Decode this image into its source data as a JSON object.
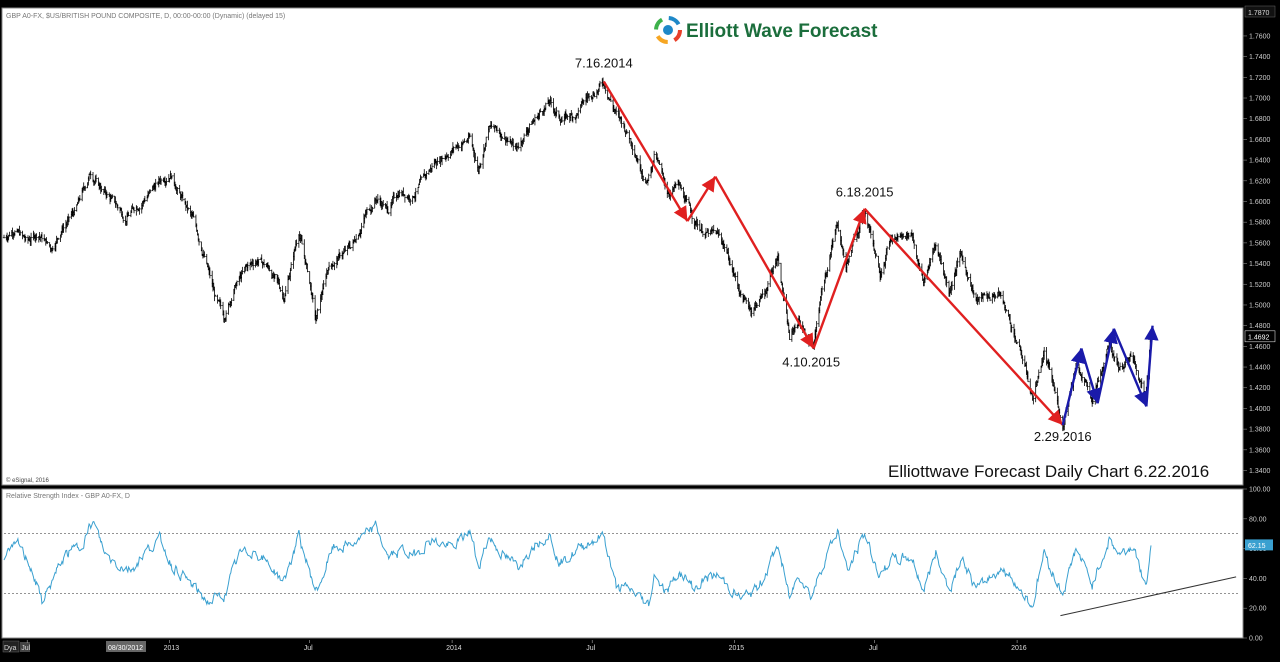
{
  "chart_header": "GBP A0-FX, $US/BRITISH POUND COMPOSITE, D, 00:00-00:00 (Dynamic) (delayed 15)",
  "brand": {
    "name": "Elliott Wave Forecast",
    "logo_colors": [
      "#e8402a",
      "#f6a623",
      "#3db14b",
      "#1e88c8"
    ]
  },
  "chart_title": "Elliottwave Forecast Daily Chart 6.22.2016",
  "copyright": "© eSignal, 2016",
  "rsi_header": "Relative Strength Index - GBP A0-FX, D",
  "colors": {
    "price_bar": "#000000",
    "impulse_arrows": "#e02020",
    "corrective_arrows": "#1a1aaa",
    "rsi_line": "#3aa0d0",
    "current_price_box": "#000000",
    "rsi_value_box": "#3aa0d0"
  },
  "price_axis": {
    "ticks": [
      "1.3400",
      "1.3600",
      "1.3800",
      "1.4000",
      "1.4200",
      "1.4400",
      "1.4600",
      "1.4800",
      "1.5000",
      "1.5200",
      "1.5400",
      "1.5600",
      "1.5800",
      "1.6000",
      "1.6200",
      "1.6400",
      "1.6600",
      "1.6800",
      "1.7000",
      "1.7200",
      "1.7400",
      "1.7600"
    ],
    "top_label": "1.7870",
    "current_price": "1.4692"
  },
  "rsi_axis": {
    "ticks": [
      "0.00",
      "20.00",
      "40.00",
      "60.00",
      "80.00",
      "100.00"
    ],
    "current": "62.15",
    "levels": [
      70,
      30
    ]
  },
  "time_axis": {
    "labels": [
      "Jul",
      "2013",
      "Jul",
      "2014",
      "Jul",
      "2015",
      "Jul",
      "2016"
    ],
    "cursor_date": "08/30/2012",
    "left_button": "Dya"
  },
  "annotations": [
    {
      "text": "7.16.2014",
      "date": "2014-07-16",
      "value": 1.718
    },
    {
      "text": "4.10.2015",
      "date": "2015-04-10",
      "value": 1.456
    },
    {
      "text": "6.18.2015",
      "date": "2015-06-18",
      "value": 1.593
    },
    {
      "text": "2.29.2016",
      "date": "2016-02-29",
      "value": 1.384
    }
  ],
  "chart_data": [
    {
      "type": "bar",
      "title": "GBP A0-FX, $US/BRITISH POUND COMPOSITE, D",
      "x_range": [
        "2012-06-01",
        "2016-10-15"
      ],
      "ylim": [
        1.326,
        1.787
      ],
      "price_path": [
        [
          "2012-06-01",
          1.565
        ],
        [
          "2012-06-15",
          1.575
        ],
        [
          "2012-07-01",
          1.56
        ],
        [
          "2012-07-15",
          1.57
        ],
        [
          "2012-08-01",
          1.555
        ],
        [
          "2012-08-15",
          1.575
        ],
        [
          "2012-09-01",
          1.59
        ],
        [
          "2012-09-21",
          1.628
        ],
        [
          "2012-10-05",
          1.612
        ],
        [
          "2012-10-20",
          1.6
        ],
        [
          "2012-11-05",
          1.585
        ],
        [
          "2012-11-20",
          1.596
        ],
        [
          "2012-12-10",
          1.612
        ],
        [
          "2013-01-02",
          1.63
        ],
        [
          "2013-01-15",
          1.606
        ],
        [
          "2013-02-01",
          1.58
        ],
        [
          "2013-02-15",
          1.548
        ],
        [
          "2013-03-01",
          1.506
        ],
        [
          "2013-03-12",
          1.487
        ],
        [
          "2013-03-25",
          1.516
        ],
        [
          "2013-04-10",
          1.535
        ],
        [
          "2013-04-25",
          1.544
        ],
        [
          "2013-05-10",
          1.535
        ],
        [
          "2013-05-29",
          1.508
        ],
        [
          "2013-06-17",
          1.572
        ],
        [
          "2013-07-01",
          1.522
        ],
        [
          "2013-07-09",
          1.484
        ],
        [
          "2013-07-25",
          1.537
        ],
        [
          "2013-08-10",
          1.548
        ],
        [
          "2013-08-25",
          1.557
        ],
        [
          "2013-09-10",
          1.586
        ],
        [
          "2013-09-25",
          1.604
        ],
        [
          "2013-10-10",
          1.592
        ],
        [
          "2013-10-25",
          1.61
        ],
        [
          "2013-11-10",
          1.606
        ],
        [
          "2013-11-25",
          1.62
        ],
        [
          "2013-12-10",
          1.638
        ],
        [
          "2014-01-02",
          1.652
        ],
        [
          "2014-01-24",
          1.661
        ],
        [
          "2014-02-04",
          1.631
        ],
        [
          "2014-02-17",
          1.673
        ],
        [
          "2014-03-10",
          1.664
        ],
        [
          "2014-03-25",
          1.65
        ],
        [
          "2014-04-10",
          1.673
        ],
        [
          "2014-05-06",
          1.696
        ],
        [
          "2014-05-20",
          1.68
        ],
        [
          "2014-06-10",
          1.684
        ],
        [
          "2014-06-25",
          1.701
        ],
        [
          "2014-07-16",
          1.716
        ],
        [
          "2014-08-01",
          1.685
        ],
        [
          "2014-08-20",
          1.66
        ],
        [
          "2014-09-10",
          1.62
        ],
        [
          "2014-09-20",
          1.647
        ],
        [
          "2014-10-05",
          1.609
        ],
        [
          "2014-10-20",
          1.615
        ],
        [
          "2014-11-10",
          1.582
        ],
        [
          "2014-11-25",
          1.57
        ],
        [
          "2014-12-10",
          1.567
        ],
        [
          "2014-12-20",
          1.556
        ],
        [
          "2015-01-10",
          1.508
        ],
        [
          "2015-01-23",
          1.496
        ],
        [
          "2015-02-10",
          1.513
        ],
        [
          "2015-02-26",
          1.549
        ],
        [
          "2015-03-13",
          1.467
        ],
        [
          "2015-03-25",
          1.485
        ],
        [
          "2015-04-13",
          1.458
        ],
        [
          "2015-04-25",
          1.52
        ],
        [
          "2015-05-14",
          1.579
        ],
        [
          "2015-05-25",
          1.537
        ],
        [
          "2015-06-18",
          1.593
        ],
        [
          "2015-07-08",
          1.534
        ],
        [
          "2015-07-20",
          1.562
        ],
        [
          "2015-08-18",
          1.57
        ],
        [
          "2015-09-02",
          1.521
        ],
        [
          "2015-09-18",
          1.56
        ],
        [
          "2015-10-05",
          1.514
        ],
        [
          "2015-10-20",
          1.549
        ],
        [
          "2015-11-10",
          1.505
        ],
        [
          "2015-11-25",
          1.508
        ],
        [
          "2015-12-10",
          1.511
        ],
        [
          "2015-12-25",
          1.479
        ],
        [
          "2016-01-10",
          1.444
        ],
        [
          "2016-01-21",
          1.41
        ],
        [
          "2016-02-05",
          1.455
        ],
        [
          "2016-02-29",
          1.384
        ],
        [
          "2016-03-17",
          1.445
        ],
        [
          "2016-04-07",
          1.406
        ],
        [
          "2016-04-29",
          1.467
        ],
        [
          "2016-05-12",
          1.442
        ],
        [
          "2016-05-31",
          1.447
        ],
        [
          "2016-06-15",
          1.408
        ],
        [
          "2016-06-22",
          1.469
        ]
      ],
      "impulse_arrows": [
        {
          "from": {
            "date": "2014-07-16",
            "value": 1.716
          },
          "to": {
            "date": "2014-11-01",
            "value": 1.581
          }
        },
        {
          "from": {
            "date": "2014-11-01",
            "value": 1.581
          },
          "to": {
            "date": "2014-12-07",
            "value": 1.624
          }
        },
        {
          "from": {
            "date": "2014-12-07",
            "value": 1.624
          },
          "to": {
            "date": "2015-04-13",
            "value": 1.458
          }
        },
        {
          "from": {
            "date": "2015-04-13",
            "value": 1.458
          },
          "to": {
            "date": "2015-06-18",
            "value": 1.593
          }
        },
        {
          "from": {
            "date": "2015-06-18",
            "value": 1.593
          },
          "to": {
            "date": "2016-02-29",
            "value": 1.384
          }
        }
      ],
      "corrective_arrows": [
        {
          "from": {
            "date": "2016-02-29",
            "value": 1.384
          },
          "to": {
            "date": "2016-03-24",
            "value": 1.458
          }
        },
        {
          "from": {
            "date": "2016-03-24",
            "value": 1.458
          },
          "to": {
            "date": "2016-04-14",
            "value": 1.405
          }
        },
        {
          "from": {
            "date": "2016-04-14",
            "value": 1.405
          },
          "to": {
            "date": "2016-05-05",
            "value": 1.477
          }
        },
        {
          "from": {
            "date": "2016-05-05",
            "value": 1.477
          },
          "to": {
            "date": "2016-06-16",
            "value": 1.402
          }
        },
        {
          "from": {
            "date": "2016-06-16",
            "value": 1.402
          },
          "to": {
            "date": "2016-06-24",
            "value": 1.48
          }
        }
      ]
    },
    {
      "type": "line",
      "title": "Relative Strength Index - GBP A0-FX, D",
      "ylim": [
        0,
        100
      ],
      "levels": [
        70,
        30
      ],
      "rsi_path": [
        [
          "2012-06-01",
          55
        ],
        [
          "2012-06-20",
          62
        ],
        [
          "2012-07-06",
          48
        ],
        [
          "2012-07-20",
          24
        ],
        [
          "2012-08-01",
          37
        ],
        [
          "2012-08-20",
          56
        ],
        [
          "2012-09-06",
          61
        ],
        [
          "2012-09-24",
          78
        ],
        [
          "2012-10-10",
          56
        ],
        [
          "2012-10-25",
          50
        ],
        [
          "2012-11-12",
          46
        ],
        [
          "2012-12-01",
          58
        ],
        [
          "2012-12-20",
          66
        ],
        [
          "2013-01-04",
          49
        ],
        [
          "2013-02-01",
          34
        ],
        [
          "2013-02-20",
          24
        ],
        [
          "2013-03-13",
          29
        ],
        [
          "2013-04-01",
          56
        ],
        [
          "2013-04-20",
          59
        ],
        [
          "2013-05-10",
          49
        ],
        [
          "2013-05-28",
          38
        ],
        [
          "2013-06-17",
          68
        ],
        [
          "2013-07-01",
          44
        ],
        [
          "2013-07-10",
          31
        ],
        [
          "2013-07-31",
          60
        ],
        [
          "2013-08-20",
          62
        ],
        [
          "2013-09-10",
          68
        ],
        [
          "2013-09-25",
          75
        ],
        [
          "2013-10-10",
          54
        ],
        [
          "2013-10-28",
          59
        ],
        [
          "2013-11-12",
          55
        ],
        [
          "2013-12-04",
          66
        ],
        [
          "2014-01-02",
          60
        ],
        [
          "2014-01-24",
          72
        ],
        [
          "2014-02-04",
          48
        ],
        [
          "2014-02-17",
          68
        ],
        [
          "2014-03-10",
          54
        ],
        [
          "2014-03-27",
          48
        ],
        [
          "2014-04-16",
          63
        ],
        [
          "2014-05-06",
          70
        ],
        [
          "2014-05-20",
          50
        ],
        [
          "2014-06-10",
          58
        ],
        [
          "2014-06-25",
          64
        ],
        [
          "2014-07-16",
          69
        ],
        [
          "2014-08-01",
          34
        ],
        [
          "2014-08-20",
          32
        ],
        [
          "2014-09-12",
          22
        ],
        [
          "2014-09-20",
          44
        ],
        [
          "2014-10-05",
          30
        ],
        [
          "2014-10-20",
          45
        ],
        [
          "2014-11-10",
          33
        ],
        [
          "2014-11-25",
          40
        ],
        [
          "2014-12-10",
          42
        ],
        [
          "2015-01-10",
          26
        ],
        [
          "2015-02-01",
          34
        ],
        [
          "2015-02-26",
          62
        ],
        [
          "2015-03-13",
          26
        ],
        [
          "2015-03-25",
          44
        ],
        [
          "2015-04-10",
          28
        ],
        [
          "2015-05-01",
          58
        ],
        [
          "2015-05-14",
          72
        ],
        [
          "2015-05-27",
          44
        ],
        [
          "2015-06-18",
          70
        ],
        [
          "2015-07-08",
          41
        ],
        [
          "2015-07-20",
          52
        ],
        [
          "2015-08-18",
          54
        ],
        [
          "2015-09-02",
          32
        ],
        [
          "2015-09-18",
          57
        ],
        [
          "2015-10-06",
          32
        ],
        [
          "2015-10-20",
          54
        ],
        [
          "2015-11-10",
          32
        ],
        [
          "2015-11-25",
          40
        ],
        [
          "2015-12-10",
          47
        ],
        [
          "2015-12-25",
          40
        ],
        [
          "2016-01-21",
          22
        ],
        [
          "2016-02-05",
          58
        ],
        [
          "2016-02-19",
          40
        ],
        [
          "2016-02-29",
          30
        ],
        [
          "2016-03-17",
          60
        ],
        [
          "2016-04-07",
          36
        ],
        [
          "2016-04-29",
          66
        ],
        [
          "2016-05-12",
          56
        ],
        [
          "2016-05-31",
          62
        ],
        [
          "2016-06-15",
          33
        ],
        [
          "2016-06-22",
          62.15
        ]
      ],
      "trendline": {
        "from": {
          "date": "2016-02-26",
          "value": 15
        },
        "to": {
          "date": "2016-10-10",
          "value": 41
        }
      }
    }
  ]
}
